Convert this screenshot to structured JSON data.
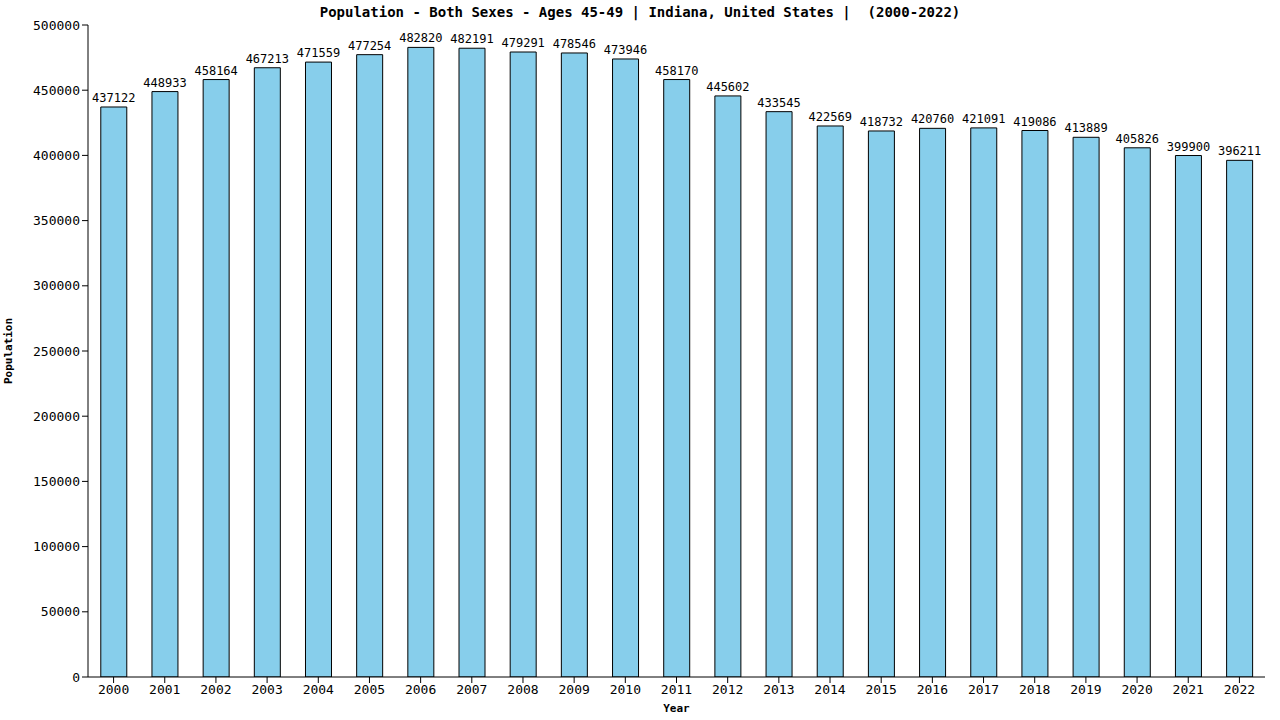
{
  "chart_data": {
    "type": "bar",
    "title": "Population - Both Sexes - Ages 45-49 | Indiana, United States |  (2000-2022)",
    "x_label": "Year",
    "y_label": "Population",
    "categories": [
      "2000",
      "2001",
      "2002",
      "2003",
      "2004",
      "2005",
      "2006",
      "2007",
      "2008",
      "2009",
      "2010",
      "2011",
      "2012",
      "2013",
      "2014",
      "2015",
      "2016",
      "2017",
      "2018",
      "2019",
      "2020",
      "2021",
      "2022"
    ],
    "values": [
      437122,
      448933,
      458164,
      467213,
      471559,
      477254,
      482820,
      482191,
      479291,
      478546,
      473946,
      458170,
      445602,
      433545,
      422569,
      418732,
      420760,
      421091,
      419086,
      413889,
      405826,
      399900,
      396211
    ],
    "color": "#87ceeb",
    "ylim": [
      0,
      500000
    ],
    "yticks": [
      0,
      50000,
      100000,
      150000,
      200000,
      250000,
      300000,
      350000,
      400000,
      450000,
      500000
    ],
    "grid": false,
    "data_labels": true
  }
}
